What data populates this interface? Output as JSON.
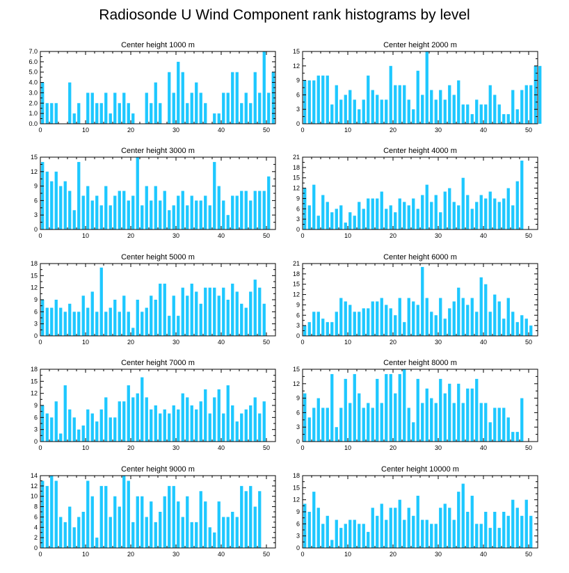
{
  "title": "Radiosonde U Wind Component rank histograms by level",
  "colors": {
    "bar": "#1ec8ff",
    "axis": "#000000"
  },
  "chart_data": [
    {
      "type": "bar",
      "title": "Center height 1000 m",
      "xlim": [
        0,
        52
      ],
      "ylim": [
        0,
        7
      ],
      "xticks": [
        0,
        10,
        20,
        30,
        40,
        50
      ],
      "yticks": [
        0,
        1,
        2,
        3,
        4,
        5,
        6,
        7
      ],
      "ytick_labels": [
        "0.0",
        "1.0",
        "2.0",
        "3.0",
        "4.0",
        "5.0",
        "6.0",
        "7.0"
      ],
      "values": [
        4,
        2,
        2,
        2,
        0,
        0,
        4,
        1,
        2,
        0,
        3,
        3,
        2,
        2,
        3,
        1,
        3,
        2,
        3,
        2,
        1,
        0,
        0,
        3,
        2,
        4,
        2,
        0,
        5,
        3,
        6,
        5,
        2,
        3,
        4,
        3,
        2,
        0,
        1,
        1,
        3,
        3,
        5,
        5,
        2,
        3,
        2,
        5,
        3,
        7,
        3,
        5
      ]
    },
    {
      "type": "bar",
      "title": "Center height 2000 m",
      "xlim": [
        0,
        52
      ],
      "ylim": [
        0,
        15
      ],
      "xticks": [
        0,
        10,
        20,
        30,
        40,
        50
      ],
      "yticks": [
        0,
        3,
        6,
        9,
        12,
        15
      ],
      "ytick_labels": [
        "0",
        "3",
        "6",
        "9",
        "12",
        "15"
      ],
      "values": [
        9,
        9,
        9,
        10,
        10,
        10,
        4,
        8,
        5,
        6,
        7,
        5,
        3,
        5,
        10,
        7,
        6,
        5,
        5,
        12,
        8,
        8,
        8,
        5,
        3,
        11,
        6,
        15,
        7,
        5,
        7,
        5,
        8,
        6,
        9,
        4,
        4,
        2,
        5,
        4,
        4,
        8,
        6,
        4,
        2,
        2,
        7,
        3,
        7,
        8,
        8,
        12,
        12
      ]
    },
    {
      "type": "bar",
      "title": "Center height 3000 m",
      "xlim": [
        0,
        52
      ],
      "ylim": [
        0,
        15
      ],
      "xticks": [
        0,
        10,
        20,
        30,
        40,
        50
      ],
      "yticks": [
        0,
        3,
        6,
        9,
        12,
        15
      ],
      "ytick_labels": [
        "0",
        "3",
        "6",
        "9",
        "12",
        "15"
      ],
      "values": [
        14,
        12,
        10,
        12,
        9,
        10,
        8,
        4,
        14,
        7,
        9,
        6,
        7,
        5,
        9,
        5,
        7,
        8,
        8,
        6,
        7,
        15,
        5,
        9,
        6,
        9,
        6,
        8,
        4,
        5,
        7,
        8,
        5,
        7,
        6,
        6,
        7,
        5,
        14,
        9,
        6,
        3,
        7,
        7,
        8,
        8,
        6,
        8,
        8,
        8,
        11
      ]
    },
    {
      "type": "bar",
      "title": "Center height 4000 m",
      "xlim": [
        0,
        52
      ],
      "ylim": [
        0,
        21
      ],
      "xticks": [
        0,
        10,
        20,
        30,
        40,
        50
      ],
      "yticks": [
        0,
        3,
        6,
        9,
        12,
        15,
        18,
        21
      ],
      "ytick_labels": [
        "0",
        "3",
        "6",
        "9",
        "12",
        "15",
        "18",
        "21"
      ],
      "values": [
        12,
        7,
        13,
        4,
        10,
        8,
        5,
        6,
        7,
        2,
        5,
        4,
        8,
        6,
        9,
        9,
        9,
        11,
        6,
        7,
        5,
        9,
        8,
        7,
        9,
        6,
        10,
        13,
        8,
        10,
        5,
        11,
        12,
        8,
        7,
        15,
        10,
        6,
        8,
        10,
        9,
        11,
        9,
        8,
        9,
        12,
        7,
        14,
        20
      ]
    },
    {
      "type": "bar",
      "title": "Center height 5000 m",
      "xlim": [
        0,
        52
      ],
      "ylim": [
        0,
        18
      ],
      "xticks": [
        0,
        10,
        20,
        30,
        40,
        50
      ],
      "yticks": [
        0,
        3,
        6,
        9,
        12,
        15,
        18
      ],
      "ytick_labels": [
        "0",
        "3",
        "6",
        "9",
        "12",
        "15",
        "18"
      ],
      "values": [
        9,
        7,
        7,
        9,
        7,
        6,
        8,
        6,
        6,
        10,
        7,
        11,
        6,
        17,
        6,
        7,
        9,
        6,
        10,
        6,
        2,
        9,
        6,
        7,
        10,
        9,
        13,
        13,
        5,
        10,
        5,
        12,
        10,
        13,
        11,
        8,
        12,
        12,
        12,
        10,
        12,
        9,
        13,
        11,
        8,
        7,
        11,
        14,
        12,
        8
      ]
    },
    {
      "type": "bar",
      "title": "Center height 6000 m",
      "xlim": [
        0,
        52
      ],
      "ylim": [
        0,
        21
      ],
      "xticks": [
        0,
        10,
        20,
        30,
        40,
        50
      ],
      "yticks": [
        0,
        3,
        6,
        9,
        12,
        15,
        18,
        21
      ],
      "ytick_labels": [
        "0",
        "3",
        "6",
        "9",
        "12",
        "15",
        "18",
        "21"
      ],
      "values": [
        3,
        4,
        7,
        7,
        5,
        4,
        4,
        7,
        11,
        10,
        9,
        7,
        7,
        8,
        8,
        10,
        10,
        11,
        9,
        8,
        6,
        11,
        4,
        11,
        10,
        9,
        20,
        11,
        7,
        6,
        11,
        5,
        8,
        10,
        14,
        11,
        9,
        11,
        7,
        17,
        15,
        7,
        12,
        10,
        5,
        11,
        7,
        4,
        6,
        5,
        3
      ]
    },
    {
      "type": "bar",
      "title": "Center height 7000 m",
      "xlim": [
        0,
        52
      ],
      "ylim": [
        0,
        18
      ],
      "xticks": [
        0,
        10,
        20,
        30,
        40,
        50
      ],
      "yticks": [
        0,
        3,
        6,
        9,
        12,
        15,
        18
      ],
      "ytick_labels": [
        "0",
        "3",
        "6",
        "9",
        "12",
        "15",
        "18"
      ],
      "values": [
        9,
        7,
        6,
        10,
        2,
        14,
        8,
        6,
        3,
        4,
        8,
        7,
        5,
        8,
        11,
        6,
        6,
        10,
        10,
        14,
        11,
        12,
        16,
        11,
        8,
        9,
        7,
        8,
        7,
        9,
        8,
        12,
        11,
        9,
        8,
        10,
        13,
        7,
        11,
        13,
        7,
        14,
        9,
        5,
        7,
        8,
        9,
        11,
        7,
        10
      ]
    },
    {
      "type": "bar",
      "title": "Center height 8000 m",
      "xlim": [
        0,
        52
      ],
      "ylim": [
        0,
        15
      ],
      "xticks": [
        0,
        10,
        20,
        30,
        40,
        50
      ],
      "yticks": [
        0,
        3,
        6,
        9,
        12,
        15
      ],
      "ytick_labels": [
        "0",
        "3",
        "6",
        "9",
        "12",
        "15"
      ],
      "values": [
        10,
        5,
        7,
        9,
        7,
        7,
        14,
        3,
        7,
        13,
        8,
        14,
        10,
        7,
        8,
        7,
        13,
        8,
        14,
        14,
        10,
        14,
        15,
        7,
        4,
        13,
        8,
        11,
        9,
        8,
        13,
        10,
        12,
        8,
        12,
        8,
        11,
        11,
        13,
        8,
        8,
        4,
        7,
        7,
        7,
        5,
        2,
        2,
        9
      ]
    },
    {
      "type": "bar",
      "title": "Center height 9000 m",
      "xlim": [
        0,
        52
      ],
      "ylim": [
        0,
        14
      ],
      "xticks": [
        0,
        10,
        20,
        30,
        40,
        50
      ],
      "yticks": [
        0,
        2,
        4,
        6,
        8,
        10,
        12,
        14
      ],
      "ytick_labels": [
        "0",
        "2",
        "4",
        "6",
        "8",
        "10",
        "12",
        "14"
      ],
      "values": [
        13,
        12,
        14,
        13,
        6,
        5,
        8,
        4,
        6,
        7,
        13,
        10,
        2,
        12,
        12,
        6,
        10,
        8,
        14,
        13,
        5,
        10,
        10,
        6,
        9,
        5,
        7,
        10,
        12,
        12,
        9,
        6,
        10,
        5,
        5,
        11,
        9,
        4,
        3,
        9,
        6,
        6,
        7,
        6,
        12,
        11,
        12,
        8,
        11
      ]
    },
    {
      "type": "bar",
      "title": "Center height 10000 m",
      "xlim": [
        0,
        52
      ],
      "ylim": [
        0,
        18
      ],
      "xticks": [
        0,
        10,
        20,
        30,
        40,
        50
      ],
      "yticks": [
        0,
        3,
        6,
        9,
        12,
        15,
        18
      ],
      "ytick_labels": [
        "0",
        "3",
        "6",
        "9",
        "12",
        "15",
        "18"
      ],
      "values": [
        11,
        9,
        14,
        10,
        6,
        8,
        2,
        7,
        5,
        6,
        7,
        7,
        6,
        6,
        4,
        10,
        8,
        11,
        7,
        10,
        10,
        12,
        7,
        10,
        8,
        13,
        7,
        7,
        6,
        6,
        10,
        11,
        10,
        7,
        14,
        16,
        9,
        13,
        6,
        6,
        9,
        5,
        9,
        5,
        9,
        8,
        12,
        10,
        8,
        12,
        8
      ]
    }
  ]
}
